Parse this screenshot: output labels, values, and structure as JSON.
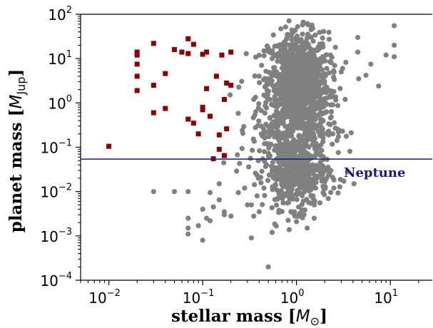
{
  "chart_data": {
    "type": "scatter",
    "x_scale": "log",
    "y_scale": "log",
    "xlim": [
      0.005,
      28
    ],
    "ylim": [
      0.0001,
      100
    ],
    "x_ticks": [
      0.01,
      0.1,
      1,
      10
    ],
    "y_ticks": [
      0.0001,
      0.001,
      0.01,
      0.1,
      1,
      10,
      100
    ],
    "x_tick_labels": [
      {
        "base": "10",
        "exp": "−2"
      },
      {
        "base": "10",
        "exp": "−1"
      },
      {
        "base": "10",
        "exp": "0"
      },
      {
        "base": "10",
        "exp": "1"
      }
    ],
    "y_tick_labels": [
      {
        "base": "10",
        "exp": "−4"
      },
      {
        "base": "10",
        "exp": "−3"
      },
      {
        "base": "10",
        "exp": "−2"
      },
      {
        "base": "10",
        "exp": "−1"
      },
      {
        "base": "10",
        "exp": "0"
      },
      {
        "base": "10",
        "exp": "1"
      },
      {
        "base": "10",
        "exp": "2"
      }
    ],
    "xlabel": {
      "prefix": "stellar mass [",
      "symbol": "M",
      "sub": "⊙",
      "suffix": "]"
    },
    "ylabel": {
      "prefix": "planet mass [",
      "symbol": "M",
      "sub": "Jup",
      "suffix": "]"
    },
    "grid": false,
    "hline": {
      "y": 0.054,
      "label": "Neptune",
      "color": "#1a1a80"
    },
    "colors": {
      "squares": "#8b0000",
      "circles": "#808080"
    },
    "series": [
      {
        "marker": "square",
        "color": "#8b0000",
        "points": [
          [
            0.01,
            0.105
          ],
          [
            0.02,
            14
          ],
          [
            0.02,
            12
          ],
          [
            0.02,
            7.5
          ],
          [
            0.02,
            4
          ],
          [
            0.02,
            1.9
          ],
          [
            0.03,
            22
          ],
          [
            0.03,
            2.5
          ],
          [
            0.03,
            0.6
          ],
          [
            0.04,
            4.6
          ],
          [
            0.04,
            0.75
          ],
          [
            0.05,
            16
          ],
          [
            0.06,
            14
          ],
          [
            0.07,
            28
          ],
          [
            0.07,
            13
          ],
          [
            0.07,
            0.43
          ],
          [
            0.08,
            21
          ],
          [
            0.08,
            0.35
          ],
          [
            0.09,
            0.2
          ],
          [
            0.1,
            12.5
          ],
          [
            0.1,
            0.7
          ],
          [
            0.1,
            0.8
          ],
          [
            0.11,
            14
          ],
          [
            0.11,
            2.1
          ],
          [
            0.12,
            0.5
          ],
          [
            0.13,
            0.055
          ],
          [
            0.14,
            4
          ],
          [
            0.15,
            0.09
          ],
          [
            0.15,
            0.19
          ],
          [
            0.16,
            12
          ],
          [
            0.17,
            0.065
          ],
          [
            0.17,
            1.2
          ],
          [
            0.18,
            0.26
          ],
          [
            0.18,
            2.8
          ],
          [
            0.2,
            2.5
          ],
          [
            0.2,
            14
          ]
        ]
      },
      {
        "marker": "circle",
        "color": "#808080",
        "points": [
          [
            0.03,
            0.01
          ],
          [
            0.05,
            0.01
          ],
          [
            0.15,
            0.015
          ],
          [
            0.07,
            0.01
          ],
          [
            0.12,
            0.0095
          ],
          [
            0.15,
            0.0065
          ],
          [
            0.17,
            0.0035
          ],
          [
            0.13,
            0.0045
          ],
          [
            0.07,
            0.0025
          ],
          [
            0.07,
            0.0015
          ],
          [
            0.07,
            0.0011
          ],
          [
            0.1,
            0.004
          ],
          [
            0.12,
            0.0022
          ],
          [
            0.11,
            0.0025
          ],
          [
            0.17,
            0.003
          ],
          [
            0.2,
            0.0028
          ],
          [
            0.09,
            0.0017
          ],
          [
            0.1,
            0.0008
          ],
          [
            0.24,
            0.0095
          ],
          [
            0.28,
            0.012
          ],
          [
            0.5,
            0.0002
          ],
          [
            0.55,
            0.0012
          ],
          [
            0.8,
            0.0055
          ],
          [
            0.95,
            0.0035
          ],
          [
            1.0,
            0.0021
          ],
          [
            1.3,
            0.0015
          ],
          [
            0.65,
            0.0038
          ],
          [
            1.2,
            0.003
          ],
          [
            2.5,
            0.012
          ],
          [
            2.8,
            0.22
          ],
          [
            3.3,
            1.2
          ],
          [
            3.1,
            6
          ],
          [
            4.5,
            14
          ],
          [
            4.6,
            3.5
          ],
          [
            4.5,
            30
          ],
          [
            5.5,
            4.2
          ],
          [
            6.2,
            7.5
          ],
          [
            7.5,
            2.4
          ],
          [
            11,
            55
          ],
          [
            11,
            20
          ],
          [
            11,
            11
          ],
          [
            9,
            12
          ],
          [
            4.1,
            0.015
          ],
          [
            3.5,
            0.028
          ],
          [
            2.2,
            0.23
          ],
          [
            2.7,
            0.26
          ],
          [
            3.1,
            0.23
          ],
          [
            2.5,
            1.8
          ],
          [
            1.9,
            3.5
          ],
          [
            2.1,
            6
          ],
          [
            2.6,
            18
          ],
          [
            3.0,
            5
          ],
          [
            2.3,
            12
          ],
          [
            0.4,
            0.0035
          ],
          [
            0.35,
            0.0028
          ],
          [
            0.3,
            0.005
          ],
          [
            0.33,
            0.0009
          ],
          [
            0.45,
            0.012
          ],
          [
            0.38,
            0.008
          ],
          [
            0.42,
            0.3
          ],
          [
            0.45,
            1.5
          ],
          [
            0.5,
            3.5
          ],
          [
            0.55,
            10
          ],
          [
            0.45,
            15
          ],
          [
            0.6,
            12
          ],
          [
            0.48,
            0.12
          ],
          [
            0.4,
            4
          ],
          [
            0.35,
            1.2
          ],
          [
            0.52,
            0.22
          ],
          [
            1.8,
            0.35
          ],
          [
            1.8,
            3
          ],
          [
            1.6,
            2
          ],
          [
            1.5,
            9
          ],
          [
            1.7,
            18
          ],
          [
            1.4,
            0.028
          ],
          [
            1.6,
            0.012
          ],
          [
            1.5,
            0.008
          ],
          [
            1.55,
            0.005
          ],
          [
            0.75,
            0.02
          ],
          [
            0.7,
            0.014
          ],
          [
            0.65,
            0.009
          ],
          [
            0.62,
            0.019
          ],
          [
            0.55,
            0.03
          ]
        ],
        "clusters": [
          {
            "x_center": 1.05,
            "x_spread": 0.16,
            "y_center": 3.0,
            "y_spread": 0.55,
            "count": 950
          },
          {
            "x_center": 1.0,
            "x_spread": 0.17,
            "y_center": 0.025,
            "y_spread": 0.4,
            "count": 420
          },
          {
            "x_center": 0.9,
            "x_spread": 0.22,
            "y_center": 0.3,
            "y_spread": 0.55,
            "count": 320
          }
        ]
      }
    ]
  }
}
